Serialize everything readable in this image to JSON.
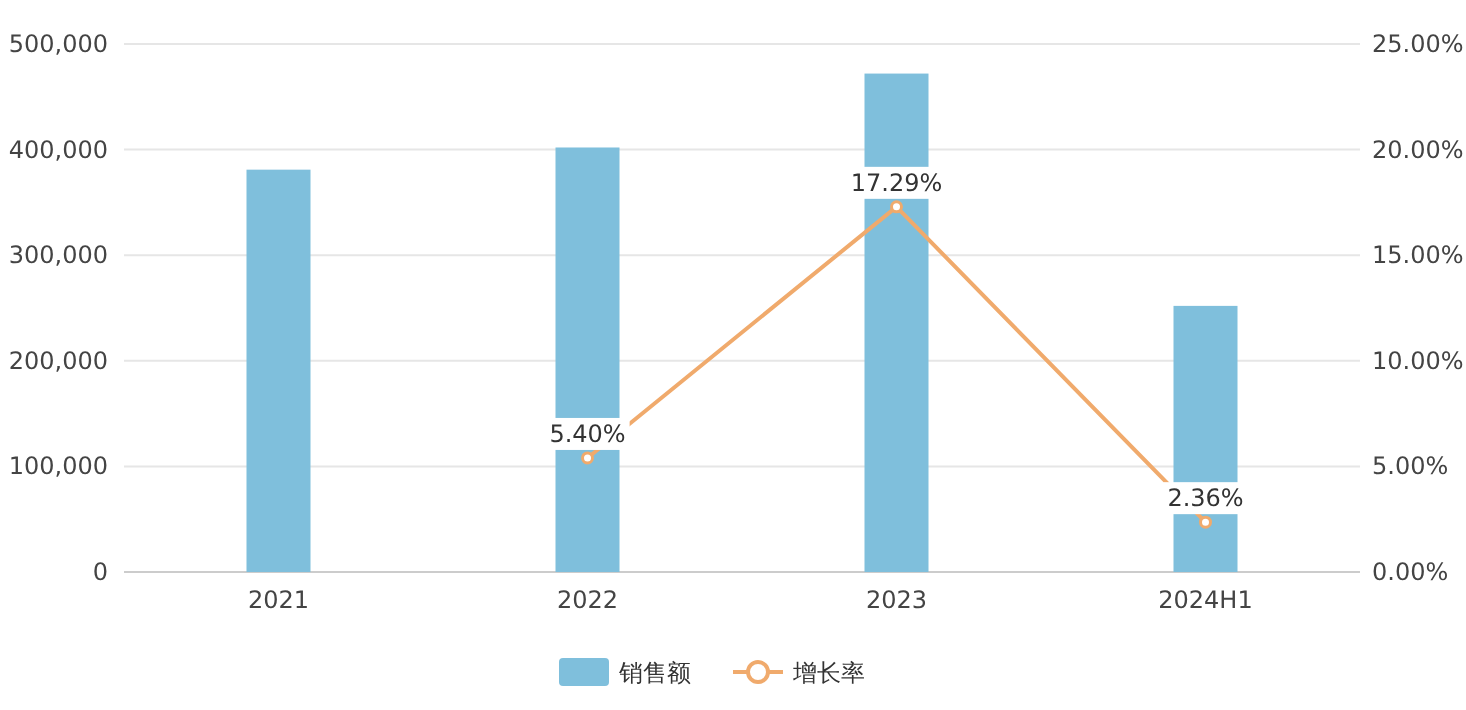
{
  "chart_data": {
    "type": "bar",
    "categories": [
      "2021",
      "2022",
      "2023",
      "2024H1"
    ],
    "series": [
      {
        "name": "销售额",
        "color": "#7fbfdc",
        "values": [
          381000,
          402000,
          472000,
          252000
        ]
      },
      {
        "name": "增长率",
        "type": "line",
        "axis": "y2",
        "color": "#f0aa6c",
        "marker": "circle",
        "values": [
          null,
          5.4,
          17.29,
          2.36
        ],
        "value_labels": [
          null,
          "5.40%",
          "17.29%",
          "2.36%"
        ]
      }
    ],
    "ylim": [
      0,
      500000
    ],
    "yticks": [
      {
        "value": 0,
        "label": "0"
      },
      {
        "value": 100000,
        "label": "100,000"
      },
      {
        "value": 200000,
        "label": "200,000"
      },
      {
        "value": 300000,
        "label": "300,000"
      },
      {
        "value": 400000,
        "label": "400,000"
      },
      {
        "value": 500000,
        "label": "500,000"
      }
    ],
    "y2lim": [
      0,
      25
    ],
    "y2ticks": [
      {
        "value": 0,
        "label": "0.00%"
      },
      {
        "value": 5,
        "label": "5.00%"
      },
      {
        "value": 10,
        "label": "10.00%"
      },
      {
        "value": 15,
        "label": "15.00%"
      },
      {
        "value": 20,
        "label": "20.00%"
      },
      {
        "value": 25,
        "label": "25.00%"
      }
    ],
    "grid": "y",
    "legend": "bottom"
  }
}
